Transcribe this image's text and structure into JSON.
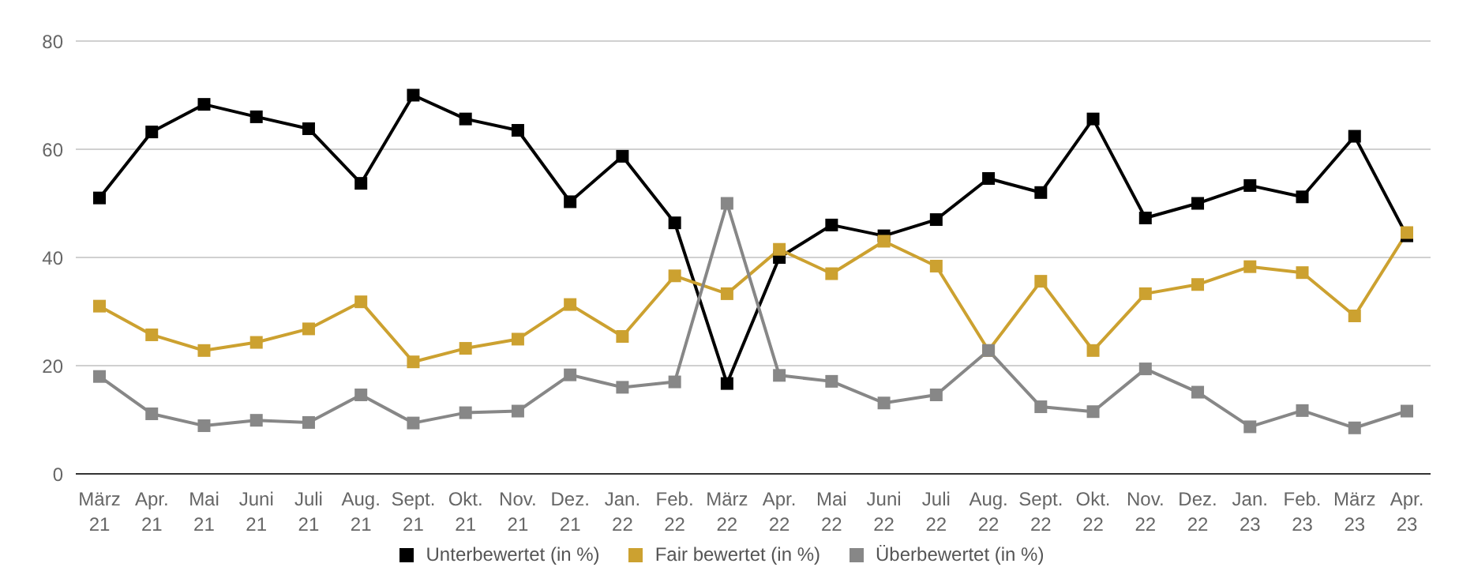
{
  "chart_data": {
    "type": "line",
    "categories": [
      "März\n21",
      "Apr.\n21",
      "Mai\n21",
      "Juni\n21",
      "Juli\n21",
      "Aug.\n21",
      "Sept.\n21",
      "Okt.\n21",
      "Nov.\n21",
      "Dez.\n21",
      "Jan.\n22",
      "Feb.\n22",
      "März\n22",
      "Apr.\n22",
      "Mai\n22",
      "Juni\n22",
      "Juli\n22",
      "Aug.\n22",
      "Sept.\n22",
      "Okt.\n22",
      "Nov.\n22",
      "Dez.\n22",
      "Jan.\n23",
      "Feb.\n23",
      "März\n23",
      "Apr.\n23"
    ],
    "series": [
      {
        "name": "Unterbewertet (in %)",
        "color": "#000000",
        "values": [
          51,
          63.2,
          68.3,
          66,
          63.8,
          53.7,
          70,
          65.6,
          63.5,
          50.3,
          58.7,
          46.4,
          16.7,
          40,
          46,
          44,
          47,
          54.6,
          52,
          65.6,
          47.3,
          50,
          53.3,
          51.2,
          62.4,
          44
        ]
      },
      {
        "name": "Fair bewertet (in %)",
        "color": "#cca130",
        "values": [
          31,
          25.7,
          22.8,
          24.3,
          26.8,
          31.8,
          20.7,
          23.2,
          24.9,
          31.3,
          25.4,
          36.6,
          33.3,
          41.5,
          37,
          43,
          38.4,
          22.8,
          35.6,
          22.8,
          33.3,
          35,
          38.3,
          37.2,
          29.2,
          44.6
        ]
      },
      {
        "name": "Überbewertet (in %)",
        "color": "#878787",
        "values": [
          18,
          11.1,
          8.9,
          9.9,
          9.5,
          14.6,
          9.4,
          11.3,
          11.6,
          18.3,
          16,
          17,
          50,
          18.2,
          17.1,
          13.1,
          14.6,
          22.8,
          12.4,
          11.5,
          19.4,
          15.1,
          8.7,
          11.7,
          8.5,
          11.6
        ]
      }
    ],
    "ylim": [
      0,
      80
    ],
    "yticks": [
      0,
      20,
      40,
      60,
      80
    ],
    "grid": "y",
    "legend": "bottom",
    "marker": "square",
    "line_style": "solid"
  }
}
